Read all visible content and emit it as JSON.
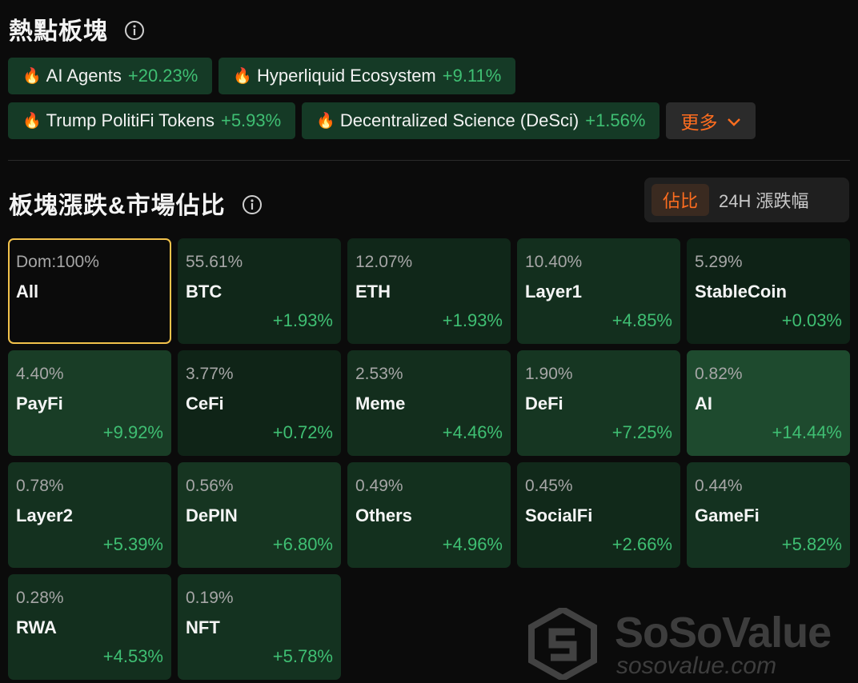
{
  "hot_sectors": {
    "title": "熱點板塊",
    "tags_row1": [
      {
        "icon": "🔥",
        "name": "AI Agents",
        "change": "+20.23%"
      },
      {
        "icon": "🔥",
        "name": "Hyperliquid Ecosystem",
        "change": "+9.11%"
      }
    ],
    "tags_row2": [
      {
        "icon": "🔥",
        "name": "Trump PolitiFi Tokens",
        "change": "+5.93%"
      },
      {
        "icon": "🔥",
        "name": "Decentralized Science (DeSci)",
        "change": "+1.56%"
      }
    ],
    "more_label": "更多"
  },
  "sector_section": {
    "title": "板塊漲跌&市場佔比",
    "toggle": {
      "active": "佔比",
      "inactive": "24H 漲跌幅"
    }
  },
  "tiles": [
    {
      "pct": "Dom:100%",
      "name": "All",
      "change": "",
      "intensity": 0
    },
    {
      "pct": "55.61%",
      "name": "BTC",
      "change": "+1.93%",
      "intensity": 1.93
    },
    {
      "pct": "12.07%",
      "name": "ETH",
      "change": "+1.93%",
      "intensity": 1.93
    },
    {
      "pct": "10.40%",
      "name": "Layer1",
      "change": "+4.85%",
      "intensity": 4.85
    },
    {
      "pct": "5.29%",
      "name": "StableCoin",
      "change": "+0.03%",
      "intensity": 0.03
    },
    {
      "pct": "4.40%",
      "name": "PayFi",
      "change": "+9.92%",
      "intensity": 9.92
    },
    {
      "pct": "3.77%",
      "name": "CeFi",
      "change": "+0.72%",
      "intensity": 0.72
    },
    {
      "pct": "2.53%",
      "name": "Meme",
      "change": "+4.46%",
      "intensity": 4.46
    },
    {
      "pct": "1.90%",
      "name": "DeFi",
      "change": "+7.25%",
      "intensity": 7.25
    },
    {
      "pct": "0.82%",
      "name": "AI",
      "change": "+14.44%",
      "intensity": 14.44
    },
    {
      "pct": "0.78%",
      "name": "Layer2",
      "change": "+5.39%",
      "intensity": 5.39
    },
    {
      "pct": "0.56%",
      "name": "DePIN",
      "change": "+6.80%",
      "intensity": 6.8
    },
    {
      "pct": "0.49%",
      "name": "Others",
      "change": "+4.96%",
      "intensity": 4.96
    },
    {
      "pct": "0.45%",
      "name": "SocialFi",
      "change": "+2.66%",
      "intensity": 2.66
    },
    {
      "pct": "0.44%",
      "name": "GameFi",
      "change": "+5.82%",
      "intensity": 5.82
    },
    {
      "pct": "0.28%",
      "name": "RWA",
      "change": "+4.53%",
      "intensity": 4.53
    },
    {
      "pct": "0.19%",
      "name": "NFT",
      "change": "+5.78%",
      "intensity": 5.78
    }
  ],
  "watermark": {
    "brand": "SoSoValue",
    "url": "sosovalue.com"
  },
  "colors": {
    "accent": "#ff6d1f",
    "positive": "#3fbf73",
    "selected_border": "#f2c24b"
  }
}
